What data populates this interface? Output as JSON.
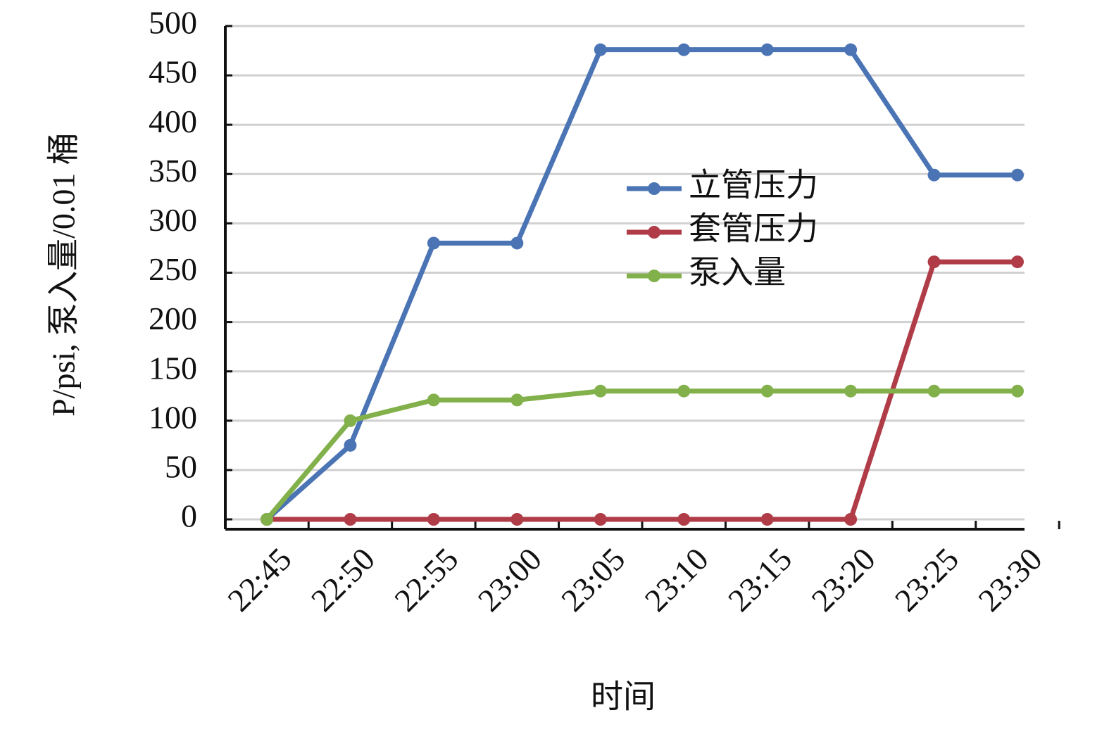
{
  "chart_data": {
    "type": "line",
    "x_label": "时间",
    "y_label": "P/psi, 泵入量/0.01 桶",
    "categories": [
      "22:45",
      "22:50",
      "22:55",
      "23:00",
      "23:05",
      "23:10",
      "23:15",
      "23:20",
      "23:25",
      "23:30"
    ],
    "series": [
      {
        "name": "立管压力",
        "color": "#4a74b4",
        "values": [
          0,
          75,
          280,
          280,
          476,
          476,
          476,
          476,
          349,
          349
        ]
      },
      {
        "name": "套管压力",
        "color": "#b03c48",
        "values": [
          0,
          0,
          0,
          0,
          0,
          0,
          0,
          0,
          261,
          261
        ]
      },
      {
        "name": "泵入量",
        "color": "#82b04a",
        "values": [
          0,
          100,
          121,
          121,
          130,
          130,
          130,
          130,
          130,
          130
        ]
      }
    ],
    "ylim": [
      0,
      500
    ],
    "yticks": [
      0,
      50,
      100,
      150,
      200,
      250,
      300,
      350,
      400,
      450,
      500
    ],
    "grid": true
  }
}
